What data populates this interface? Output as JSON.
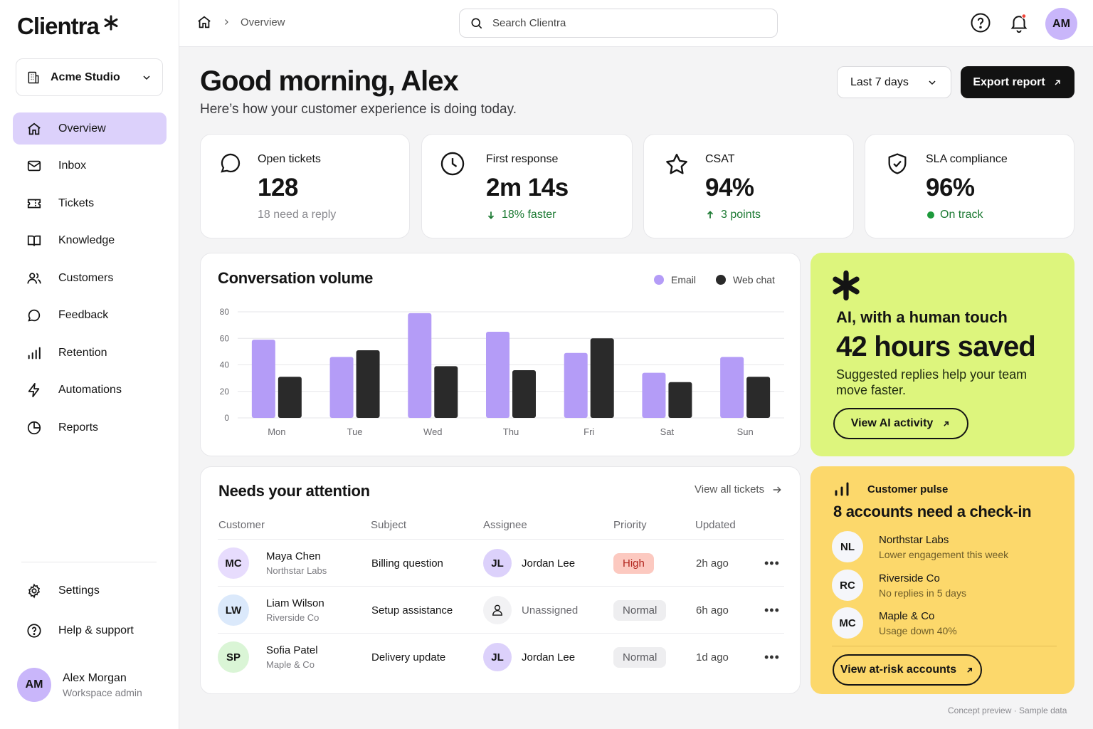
{
  "app": {
    "name": "Clientra"
  },
  "workspace": {
    "name": "Acme Studio"
  },
  "nav": [
    {
      "label": "Overview",
      "icon": "home-icon",
      "active": true
    },
    {
      "label": "Inbox",
      "icon": "mail-icon"
    },
    {
      "label": "Tickets",
      "icon": "ticket-icon"
    },
    {
      "label": "Knowledge",
      "icon": "book-icon"
    },
    {
      "label": "Customers",
      "icon": "users-icon"
    },
    {
      "label": "Feedback",
      "icon": "chat-icon"
    },
    {
      "label": "Retention",
      "icon": "bars-icon"
    },
    {
      "label": "Automations",
      "icon": "bolt-icon"
    },
    {
      "label": "Reports",
      "icon": "pie-icon"
    }
  ],
  "nav_bottom": [
    {
      "label": "Settings",
      "icon": "gear-icon"
    },
    {
      "label": "Help & support",
      "icon": "help-icon"
    }
  ],
  "user": {
    "initials": "AM",
    "name": "Alex Morgan",
    "role": "Workspace admin"
  },
  "topbar": {
    "breadcrumb": "Overview",
    "search_placeholder": "Search Clientra",
    "avatar": "AM"
  },
  "header": {
    "greeting": "Good morning, Alex",
    "subtitle": "Here’s how your customer experience is doing today.",
    "range": "Last 7 days",
    "export": "Export report"
  },
  "kpis": [
    {
      "label": "Open tickets",
      "value": "128",
      "note": "18 need a reply",
      "icon": "chat-bubble-icon",
      "tone": "grey"
    },
    {
      "label": "First response",
      "value": "2m 14s",
      "note": "18% faster",
      "icon": "clock-icon",
      "tone": "green",
      "trend": "arrow-down-icon"
    },
    {
      "label": "CSAT",
      "value": "94%",
      "note": "3 points",
      "icon": "star-icon",
      "tone": "green",
      "trend": "arrow-up-icon"
    },
    {
      "label": "SLA compliance",
      "value": "96%",
      "note": "On track",
      "icon": "shield-check-icon",
      "tone": "green",
      "trend": "status-dot"
    }
  ],
  "chart": {
    "title": "Conversation volume"
  },
  "chart_data": {
    "type": "bar",
    "title": "Conversation volume",
    "categories": [
      "Mon",
      "Tue",
      "Wed",
      "Thu",
      "Fri",
      "Sat",
      "Sun"
    ],
    "series": [
      {
        "name": "Email",
        "color": "#b49cf7",
        "values": [
          59,
          46,
          79,
          65,
          49,
          34,
          46
        ]
      },
      {
        "name": "Web chat",
        "color": "#2a2a2a",
        "values": [
          31,
          51,
          39,
          36,
          60,
          27,
          31
        ]
      }
    ],
    "ylim": [
      0,
      80
    ],
    "yticks": [
      0,
      20,
      40,
      60,
      80
    ],
    "grid": true,
    "legend": "top-right"
  },
  "ai_card": {
    "kicker": "AI, with a human touch",
    "headline": "42 hours saved",
    "text": "Suggested replies help your team move faster.",
    "button": "View AI activity",
    "color": "#ddf57d"
  },
  "attention": {
    "title": "Needs your attention",
    "view_all": "View all tickets",
    "columns": [
      "Customer",
      "Subject",
      "Assignee",
      "Priority",
      "Updated"
    ],
    "rows": [
      {
        "initials": "MC",
        "name": "Maya Chen",
        "org": "Northstar Labs",
        "avatar_color": "#e7dcfd",
        "subject": "Billing question",
        "assignee_initials": "JL",
        "assignee": "Jordan Lee",
        "priority": "High",
        "updated": "2h ago"
      },
      {
        "initials": "LW",
        "name": "Liam Wilson",
        "org": "Riverside Co",
        "avatar_color": "#dbe9fb",
        "subject": "Setup assistance",
        "assignee_initials": "",
        "assignee": "Unassigned",
        "priority": "Normal",
        "updated": "6h ago"
      },
      {
        "initials": "SP",
        "name": "Sofia Patel",
        "org": "Maple & Co",
        "avatar_color": "#daf5d6",
        "subject": "Delivery update",
        "assignee_initials": "JL",
        "assignee": "Jordan Lee",
        "priority": "Normal",
        "updated": "1d ago"
      }
    ]
  },
  "pulse": {
    "label": "Customer pulse",
    "title": "8 accounts need a check-in",
    "accounts": [
      {
        "initials": "NL",
        "name": "Northstar Labs",
        "note": "Lower engagement this week"
      },
      {
        "initials": "RC",
        "name": "Riverside Co",
        "note": "No replies in 5 days"
      },
      {
        "initials": "MC",
        "name": "Maple & Co",
        "note": "Usage down 40%"
      }
    ],
    "button": "View at-risk accounts",
    "color": "#fcd86b"
  },
  "footnote": "Concept preview · Sample data"
}
